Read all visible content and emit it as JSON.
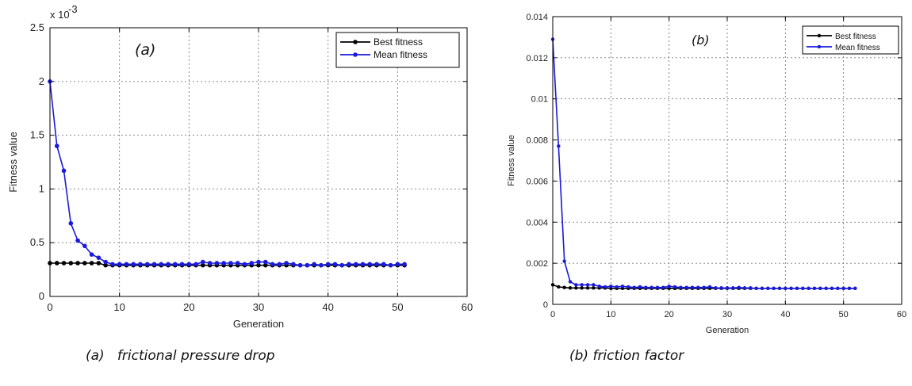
{
  "chart_data": [
    {
      "type": "line",
      "panel_label": "(a)",
      "caption": "(a)   frictional pressure drop",
      "xlabel": "Generation",
      "ylabel": "Fitness value",
      "y_multiplier": "x 10",
      "y_multiplier_exp": "-3",
      "xlim": [
        0,
        60
      ],
      "ylim": [
        0,
        2.5
      ],
      "xticks": [
        "0",
        "10",
        "20",
        "30",
        "40",
        "50",
        "60"
      ],
      "yticks": [
        "0",
        "0.5",
        "1",
        "1.5",
        "2",
        "2.5"
      ],
      "grid": true,
      "legend_position": "top-right",
      "series": [
        {
          "name": "Best fitness",
          "color": "#000000",
          "x": [
            0,
            1,
            2,
            3,
            4,
            5,
            6,
            7,
            8,
            9,
            10,
            11,
            12,
            13,
            14,
            15,
            16,
            17,
            18,
            19,
            20,
            21,
            22,
            23,
            24,
            25,
            26,
            27,
            28,
            29,
            30,
            31,
            32,
            33,
            34,
            35,
            36,
            37,
            38,
            39,
            40,
            41,
            42,
            43,
            44,
            45,
            46,
            47,
            48,
            49,
            50,
            51
          ],
          "values": [
            0.31,
            0.31,
            0.31,
            0.31,
            0.31,
            0.31,
            0.31,
            0.31,
            0.29,
            0.29,
            0.29,
            0.29,
            0.29,
            0.29,
            0.29,
            0.29,
            0.29,
            0.29,
            0.29,
            0.29,
            0.29,
            0.29,
            0.29,
            0.29,
            0.29,
            0.29,
            0.29,
            0.29,
            0.29,
            0.29,
            0.29,
            0.29,
            0.29,
            0.29,
            0.29,
            0.29,
            0.29,
            0.29,
            0.29,
            0.29,
            0.29,
            0.29,
            0.29,
            0.29,
            0.29,
            0.29,
            0.29,
            0.29,
            0.29,
            0.29,
            0.29,
            0.29
          ]
        },
        {
          "name": "Mean fitness",
          "color": "#1a1adb",
          "x": [
            0,
            1,
            2,
            3,
            4,
            5,
            6,
            7,
            8,
            9,
            10,
            11,
            12,
            13,
            14,
            15,
            16,
            17,
            18,
            19,
            20,
            21,
            22,
            23,
            24,
            25,
            26,
            27,
            28,
            29,
            30,
            31,
            32,
            33,
            34,
            35,
            36,
            37,
            38,
            39,
            40,
            41,
            42,
            43,
            44,
            45,
            46,
            47,
            48,
            49,
            50,
            51
          ],
          "values": [
            2.0,
            1.4,
            1.17,
            0.68,
            0.52,
            0.47,
            0.39,
            0.36,
            0.32,
            0.3,
            0.3,
            0.3,
            0.3,
            0.3,
            0.3,
            0.3,
            0.3,
            0.3,
            0.3,
            0.3,
            0.3,
            0.3,
            0.32,
            0.31,
            0.31,
            0.31,
            0.31,
            0.31,
            0.3,
            0.31,
            0.32,
            0.32,
            0.3,
            0.3,
            0.31,
            0.3,
            0.29,
            0.29,
            0.3,
            0.29,
            0.3,
            0.3,
            0.29,
            0.3,
            0.3,
            0.3,
            0.3,
            0.3,
            0.3,
            0.29,
            0.3,
            0.3
          ]
        }
      ]
    },
    {
      "type": "line",
      "panel_label": "(b)",
      "caption": "(b) friction factor",
      "xlabel": "Generation",
      "ylabel": "Fitness value",
      "xlim": [
        0,
        60
      ],
      "ylim": [
        0,
        0.014
      ],
      "xticks": [
        "0",
        "10",
        "20",
        "30",
        "40",
        "50",
        "60"
      ],
      "yticks": [
        "0",
        "0.002",
        "0.004",
        "0.006",
        "0.008",
        "0.01",
        "0.012",
        "0.014"
      ],
      "grid": true,
      "legend_position": "top-right",
      "series": [
        {
          "name": "Best fitness",
          "color": "#000000",
          "x": [
            0,
            1,
            2,
            3,
            4,
            5,
            6,
            7,
            8,
            9,
            10,
            11,
            12,
            13,
            14,
            15,
            16,
            17,
            18,
            19,
            20,
            21,
            22,
            23,
            24,
            25,
            26,
            27,
            28,
            29,
            30,
            31,
            32,
            33,
            34,
            35,
            36,
            37,
            38,
            39,
            40,
            41,
            42,
            43,
            44,
            45,
            46,
            47,
            48,
            49,
            50,
            51,
            52
          ],
          "values": [
            0.00095,
            0.00085,
            0.00082,
            0.0008,
            0.0008,
            0.0008,
            0.0008,
            0.0008,
            0.0008,
            0.0008,
            0.00078,
            0.00078,
            0.00078,
            0.00078,
            0.00078,
            0.00078,
            0.00078,
            0.00078,
            0.00078,
            0.00078,
            0.00078,
            0.00078,
            0.00078,
            0.00078,
            0.00078,
            0.00078,
            0.00078,
            0.00078,
            0.00078,
            0.00078,
            0.00078,
            0.00078,
            0.00078,
            0.00078,
            0.00078,
            0.00078,
            0.00078,
            0.00078,
            0.00078,
            0.00078,
            0.00078,
            0.00078,
            0.00078,
            0.00078,
            0.00078,
            0.00078,
            0.00078,
            0.00078,
            0.00078,
            0.00078,
            0.00078,
            0.00078,
            0.00078
          ]
        },
        {
          "name": "Mean fitness",
          "color": "#1a1adb",
          "x": [
            0,
            1,
            2,
            3,
            4,
            5,
            6,
            7,
            8,
            9,
            10,
            11,
            12,
            13,
            14,
            15,
            16,
            17,
            18,
            19,
            20,
            21,
            22,
            23,
            24,
            25,
            26,
            27,
            28,
            29,
            30,
            31,
            32,
            33,
            34,
            35,
            36,
            37,
            38,
            39,
            40,
            41,
            42,
            43,
            44,
            45,
            46,
            47,
            48,
            49,
            50,
            51,
            52
          ],
          "values": [
            0.0129,
            0.0077,
            0.0021,
            0.0011,
            0.00095,
            0.00095,
            0.00095,
            0.00095,
            0.00088,
            0.00085,
            0.00088,
            0.00085,
            0.00088,
            0.00085,
            0.00082,
            0.00085,
            0.00082,
            0.00082,
            0.00082,
            0.00082,
            0.00088,
            0.00085,
            0.00082,
            0.00082,
            0.00082,
            0.00082,
            0.00082,
            0.00085,
            0.0008,
            0.0008,
            0.0008,
            0.0008,
            0.00082,
            0.0008,
            0.0008,
            0.00078,
            0.00078,
            0.00078,
            0.00078,
            0.00078,
            0.00078,
            0.00078,
            0.00078,
            0.00078,
            0.00078,
            0.00078,
            0.00078,
            0.00078,
            0.00078,
            0.00078,
            0.00078,
            0.00078,
            0.00078
          ]
        }
      ]
    }
  ]
}
